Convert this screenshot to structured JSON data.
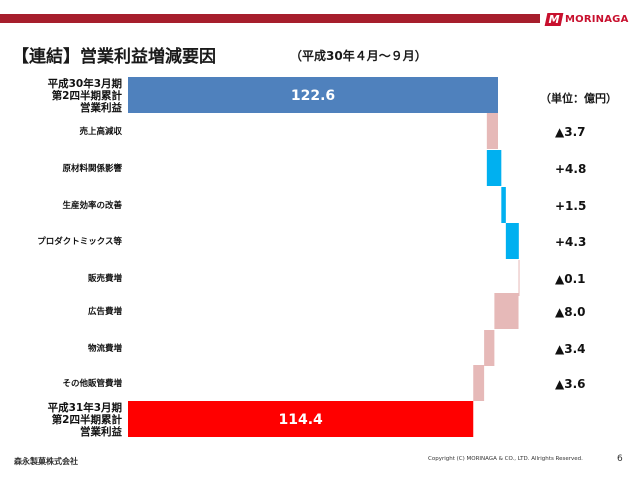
{
  "header": {
    "title": "【連結】営業利益増減要因",
    "period": "（平成30年４月～９月）",
    "unit": "（単位：億円）",
    "logo_text": "MORINAGA"
  },
  "chart_data": {
    "type": "bar",
    "subtype": "waterfall",
    "categories": [
      [
        "平成30年3月期",
        "第2四半期累計",
        "営業利益"
      ],
      [
        "売上高減収"
      ],
      [
        "原材料関係影響"
      ],
      [
        "生産効率の改善"
      ],
      [
        "プロダクトミックス等"
      ],
      [
        "販売費増"
      ],
      [
        "広告費増"
      ],
      [
        "物流費増"
      ],
      [
        "その他販管費増"
      ],
      [
        "平成31年3月期",
        "第2四半期累計",
        "営業利益"
      ]
    ],
    "values": [
      122.6,
      -3.7,
      4.8,
      1.5,
      4.3,
      -0.1,
      -8.0,
      -3.4,
      -3.6,
      114.4
    ],
    "kinds": [
      "total",
      "delta",
      "delta",
      "delta",
      "delta",
      "delta",
      "delta",
      "delta",
      "delta",
      "total"
    ],
    "value_labels": [
      "122.6",
      "▲3.7",
      "+4.8",
      "+1.5",
      "+4.3",
      "▲0.1",
      "▲8.0",
      "▲3.4",
      "▲3.6",
      "114.4"
    ],
    "colors": {
      "start_total": "#4f81bd",
      "end_total": "#ff0000",
      "increase": "#00b0f0",
      "decrease": "#e6b9b8"
    }
  },
  "footer": {
    "company": "森永製菓株式会社",
    "copyright": "Copyright (C) MORINAGA & CO., LTD. Allrights Reserved.",
    "page": "6"
  }
}
